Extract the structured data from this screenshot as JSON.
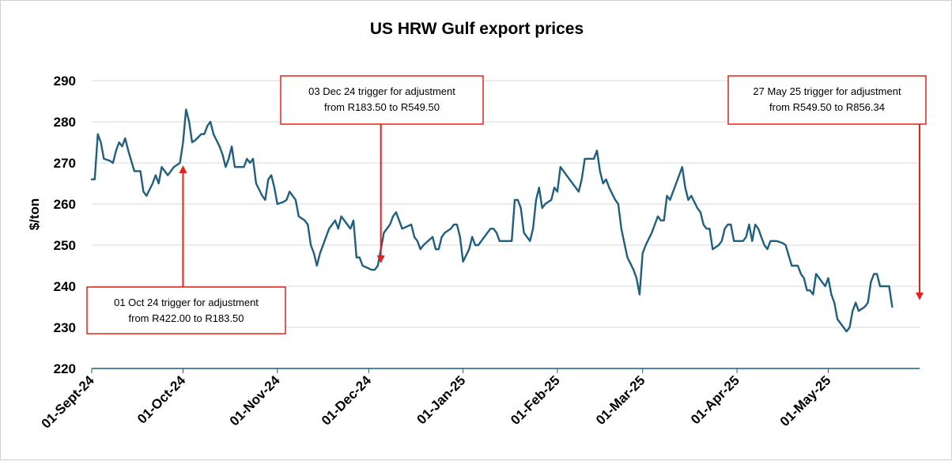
{
  "chart_data": {
    "type": "line",
    "title": "US HRW Gulf export prices",
    "ylabel": "$/ton",
    "xlabel": "",
    "ylim": [
      220,
      290
    ],
    "yticks": [
      220,
      230,
      240,
      250,
      260,
      270,
      280,
      290
    ],
    "xlim": [
      "2024-09-01",
      "2025-05-31"
    ],
    "xticks": [
      {
        "date": "2024-09-01",
        "label": "01-Sept-24"
      },
      {
        "date": "2024-10-01",
        "label": "01-Oct-24"
      },
      {
        "date": "2024-11-01",
        "label": "01-Nov-24"
      },
      {
        "date": "2024-12-01",
        "label": "01-Dec-24"
      },
      {
        "date": "2025-01-01",
        "label": "01-Jan-25"
      },
      {
        "date": "2025-02-01",
        "label": "01-Feb-25"
      },
      {
        "date": "2025-03-01",
        "label": "01-Mar-25"
      },
      {
        "date": "2025-04-01",
        "label": "01-Apr-25"
      },
      {
        "date": "2025-05-01",
        "label": "01-May-25"
      }
    ],
    "grid": "horizontal",
    "legend": "none",
    "line_color": "#1f5f7f",
    "series": [
      {
        "points": [
          [
            "2024-09-01",
            266
          ],
          [
            "2024-09-02",
            266
          ],
          [
            "2024-09-03",
            277
          ],
          [
            "2024-09-04",
            275
          ],
          [
            "2024-09-05",
            271
          ],
          [
            "2024-09-07",
            270.5
          ],
          [
            "2024-09-08",
            270
          ],
          [
            "2024-09-09",
            273
          ],
          [
            "2024-09-10",
            275
          ],
          [
            "2024-09-11",
            274
          ],
          [
            "2024-09-12",
            276
          ],
          [
            "2024-09-13",
            273
          ],
          [
            "2024-09-15",
            268
          ],
          [
            "2024-09-17",
            268
          ],
          [
            "2024-09-18",
            263
          ],
          [
            "2024-09-19",
            262
          ],
          [
            "2024-09-21",
            265
          ],
          [
            "2024-09-22",
            267
          ],
          [
            "2024-09-23",
            265
          ],
          [
            "2024-09-24",
            269
          ],
          [
            "2024-09-25",
            268
          ],
          [
            "2024-09-26",
            267
          ],
          [
            "2024-09-28",
            269
          ],
          [
            "2024-09-30",
            270
          ],
          [
            "2024-10-01",
            275
          ],
          [
            "2024-10-02",
            283
          ],
          [
            "2024-10-03",
            280
          ],
          [
            "2024-10-04",
            275
          ],
          [
            "2024-10-05",
            275.5
          ],
          [
            "2024-10-07",
            277
          ],
          [
            "2024-10-08",
            277
          ],
          [
            "2024-10-09",
            279
          ],
          [
            "2024-10-10",
            280
          ],
          [
            "2024-10-11",
            277
          ],
          [
            "2024-10-13",
            274
          ],
          [
            "2024-10-14",
            272
          ],
          [
            "2024-10-15",
            269
          ],
          [
            "2024-10-16",
            271
          ],
          [
            "2024-10-17",
            274
          ],
          [
            "2024-10-18",
            269
          ],
          [
            "2024-10-19",
            269
          ],
          [
            "2024-10-21",
            269
          ],
          [
            "2024-10-22",
            271
          ],
          [
            "2024-10-23",
            270
          ],
          [
            "2024-10-24",
            271
          ],
          [
            "2024-10-25",
            265
          ],
          [
            "2024-10-27",
            262
          ],
          [
            "2024-10-28",
            261
          ],
          [
            "2024-10-29",
            266
          ],
          [
            "2024-10-30",
            267
          ],
          [
            "2024-10-31",
            264
          ],
          [
            "2024-11-01",
            260
          ],
          [
            "2024-11-03",
            260.5
          ],
          [
            "2024-11-04",
            261
          ],
          [
            "2024-11-05",
            263
          ],
          [
            "2024-11-06",
            262
          ],
          [
            "2024-11-07",
            261
          ],
          [
            "2024-11-08",
            257
          ],
          [
            "2024-11-10",
            256
          ],
          [
            "2024-11-11",
            255
          ],
          [
            "2024-11-12",
            250
          ],
          [
            "2024-11-13",
            248
          ],
          [
            "2024-11-14",
            245
          ],
          [
            "2024-11-15",
            248
          ],
          [
            "2024-11-18",
            254
          ],
          [
            "2024-11-19",
            255
          ],
          [
            "2024-11-20",
            256
          ],
          [
            "2024-11-21",
            254
          ],
          [
            "2024-11-22",
            257
          ],
          [
            "2024-11-24",
            255
          ],
          [
            "2024-11-25",
            254
          ],
          [
            "2024-11-26",
            256
          ],
          [
            "2024-11-27",
            247
          ],
          [
            "2024-11-28",
            247
          ],
          [
            "2024-11-29",
            245
          ],
          [
            "2024-12-02",
            244
          ],
          [
            "2024-12-03",
            244
          ],
          [
            "2024-12-04",
            245
          ],
          [
            "2024-12-05",
            249
          ],
          [
            "2024-12-06",
            253
          ],
          [
            "2024-12-08",
            255
          ],
          [
            "2024-12-09",
            257
          ],
          [
            "2024-12-10",
            258
          ],
          [
            "2024-12-11",
            256
          ],
          [
            "2024-12-12",
            254
          ],
          [
            "2024-12-15",
            255
          ],
          [
            "2024-12-16",
            252
          ],
          [
            "2024-12-17",
            251
          ],
          [
            "2024-12-18",
            249
          ],
          [
            "2024-12-19",
            250
          ],
          [
            "2024-12-22",
            252
          ],
          [
            "2024-12-23",
            249
          ],
          [
            "2024-12-24",
            249
          ],
          [
            "2024-12-25",
            252
          ],
          [
            "2024-12-26",
            253
          ],
          [
            "2024-12-28",
            254
          ],
          [
            "2024-12-29",
            255
          ],
          [
            "2024-12-30",
            255
          ],
          [
            "2024-12-31",
            252
          ],
          [
            "2025-01-01",
            246
          ],
          [
            "2025-01-03",
            249
          ],
          [
            "2025-01-04",
            252
          ],
          [
            "2025-01-05",
            250
          ],
          [
            "2025-01-06",
            250
          ],
          [
            "2025-01-09",
            253
          ],
          [
            "2025-01-10",
            254
          ],
          [
            "2025-01-11",
            254
          ],
          [
            "2025-01-12",
            253
          ],
          [
            "2025-01-13",
            251
          ],
          [
            "2025-01-14",
            251
          ],
          [
            "2025-01-15",
            251
          ],
          [
            "2025-01-17",
            251
          ],
          [
            "2025-01-18",
            261
          ],
          [
            "2025-01-19",
            261
          ],
          [
            "2025-01-20",
            259
          ],
          [
            "2025-01-21",
            253
          ],
          [
            "2025-01-23",
            251
          ],
          [
            "2025-01-24",
            254
          ],
          [
            "2025-01-25",
            261
          ],
          [
            "2025-01-26",
            264
          ],
          [
            "2025-01-27",
            259
          ],
          [
            "2025-01-28",
            260
          ],
          [
            "2025-01-30",
            261
          ],
          [
            "2025-01-31",
            264
          ],
          [
            "2025-02-01",
            263
          ],
          [
            "2025-02-02",
            269
          ],
          [
            "2025-02-05",
            266
          ],
          [
            "2025-02-07",
            264
          ],
          [
            "2025-02-08",
            263
          ],
          [
            "2025-02-09",
            266
          ],
          [
            "2025-02-10",
            271
          ],
          [
            "2025-02-13",
            271
          ],
          [
            "2025-02-14",
            273
          ],
          [
            "2025-02-15",
            268
          ],
          [
            "2025-02-16",
            265
          ],
          [
            "2025-02-17",
            266
          ],
          [
            "2025-02-18",
            264
          ],
          [
            "2025-02-20",
            261
          ],
          [
            "2025-02-21",
            260
          ],
          [
            "2025-02-22",
            254
          ],
          [
            "2025-02-24",
            247
          ],
          [
            "2025-02-26",
            244
          ],
          [
            "2025-02-27",
            242
          ],
          [
            "2025-02-28",
            238
          ],
          [
            "2025-03-01",
            248
          ],
          [
            "2025-03-02",
            250
          ],
          [
            "2025-03-04",
            253
          ],
          [
            "2025-03-05",
            255
          ],
          [
            "2025-03-06",
            257
          ],
          [
            "2025-03-07",
            256
          ],
          [
            "2025-03-08",
            256
          ],
          [
            "2025-03-09",
            262
          ],
          [
            "2025-03-10",
            261
          ],
          [
            "2025-03-12",
            265
          ],
          [
            "2025-03-14",
            269
          ],
          [
            "2025-03-15",
            264
          ],
          [
            "2025-03-16",
            261
          ],
          [
            "2025-03-17",
            262
          ],
          [
            "2025-03-19",
            259
          ],
          [
            "2025-03-20",
            258
          ],
          [
            "2025-03-21",
            255
          ],
          [
            "2025-03-22",
            254
          ],
          [
            "2025-03-23",
            254
          ],
          [
            "2025-03-24",
            249
          ],
          [
            "2025-03-26",
            250
          ],
          [
            "2025-03-27",
            251
          ],
          [
            "2025-03-28",
            254
          ],
          [
            "2025-03-29",
            255
          ],
          [
            "2025-03-30",
            255
          ],
          [
            "2025-03-31",
            251
          ],
          [
            "2025-04-02",
            251
          ],
          [
            "2025-04-03",
            251
          ],
          [
            "2025-04-04",
            252
          ],
          [
            "2025-04-05",
            255
          ],
          [
            "2025-04-06",
            251
          ],
          [
            "2025-04-07",
            255
          ],
          [
            "2025-04-08",
            254
          ],
          [
            "2025-04-09",
            252
          ],
          [
            "2025-04-10",
            250
          ],
          [
            "2025-04-11",
            249
          ],
          [
            "2025-04-12",
            251
          ],
          [
            "2025-04-14",
            251
          ],
          [
            "2025-04-16",
            250.5
          ],
          [
            "2025-04-17",
            250
          ],
          [
            "2025-04-19",
            245
          ],
          [
            "2025-04-21",
            245
          ],
          [
            "2025-04-22",
            243
          ],
          [
            "2025-04-23",
            242
          ],
          [
            "2025-04-24",
            239
          ],
          [
            "2025-04-25",
            239
          ],
          [
            "2025-04-26",
            238
          ],
          [
            "2025-04-27",
            243
          ],
          [
            "2025-04-28",
            242
          ],
          [
            "2025-04-29",
            241
          ],
          [
            "2025-04-30",
            240
          ],
          [
            "2025-05-01",
            242
          ],
          [
            "2025-05-02",
            238
          ],
          [
            "2025-05-03",
            236
          ],
          [
            "2025-05-04",
            232
          ],
          [
            "2025-05-06",
            230
          ],
          [
            "2025-05-07",
            229
          ],
          [
            "2025-05-08",
            230
          ],
          [
            "2025-05-09",
            234
          ],
          [
            "2025-05-10",
            236
          ],
          [
            "2025-05-11",
            234
          ],
          [
            "2025-05-13",
            235
          ],
          [
            "2025-05-14",
            236
          ],
          [
            "2025-05-15",
            241
          ],
          [
            "2025-05-16",
            243
          ],
          [
            "2025-05-17",
            243
          ],
          [
            "2025-05-18",
            240
          ],
          [
            "2025-05-21",
            240
          ],
          [
            "2025-05-22",
            235
          ]
        ]
      }
    ],
    "annotations": [
      {
        "lines": [
          "01 Oct 24 trigger for adjustment",
          "from R422.00 to R183.50"
        ],
        "target_date": "2024-10-01",
        "target_value": 270,
        "box_position": "below",
        "arrow_direction": "up"
      },
      {
        "lines": [
          "03 Dec 24 trigger for adjustment",
          "from R183.50 to R549.50"
        ],
        "target_date": "2024-12-05",
        "target_value": 245,
        "box_position": "above",
        "arrow_direction": "down"
      },
      {
        "lines": [
          "27 May 25 trigger for adjustment",
          "from R549.50 to R856.34"
        ],
        "target_date": "2025-05-31",
        "target_value": 236,
        "box_position": "above",
        "arrow_direction": "down"
      }
    ],
    "annotation_color": "#e32219"
  }
}
